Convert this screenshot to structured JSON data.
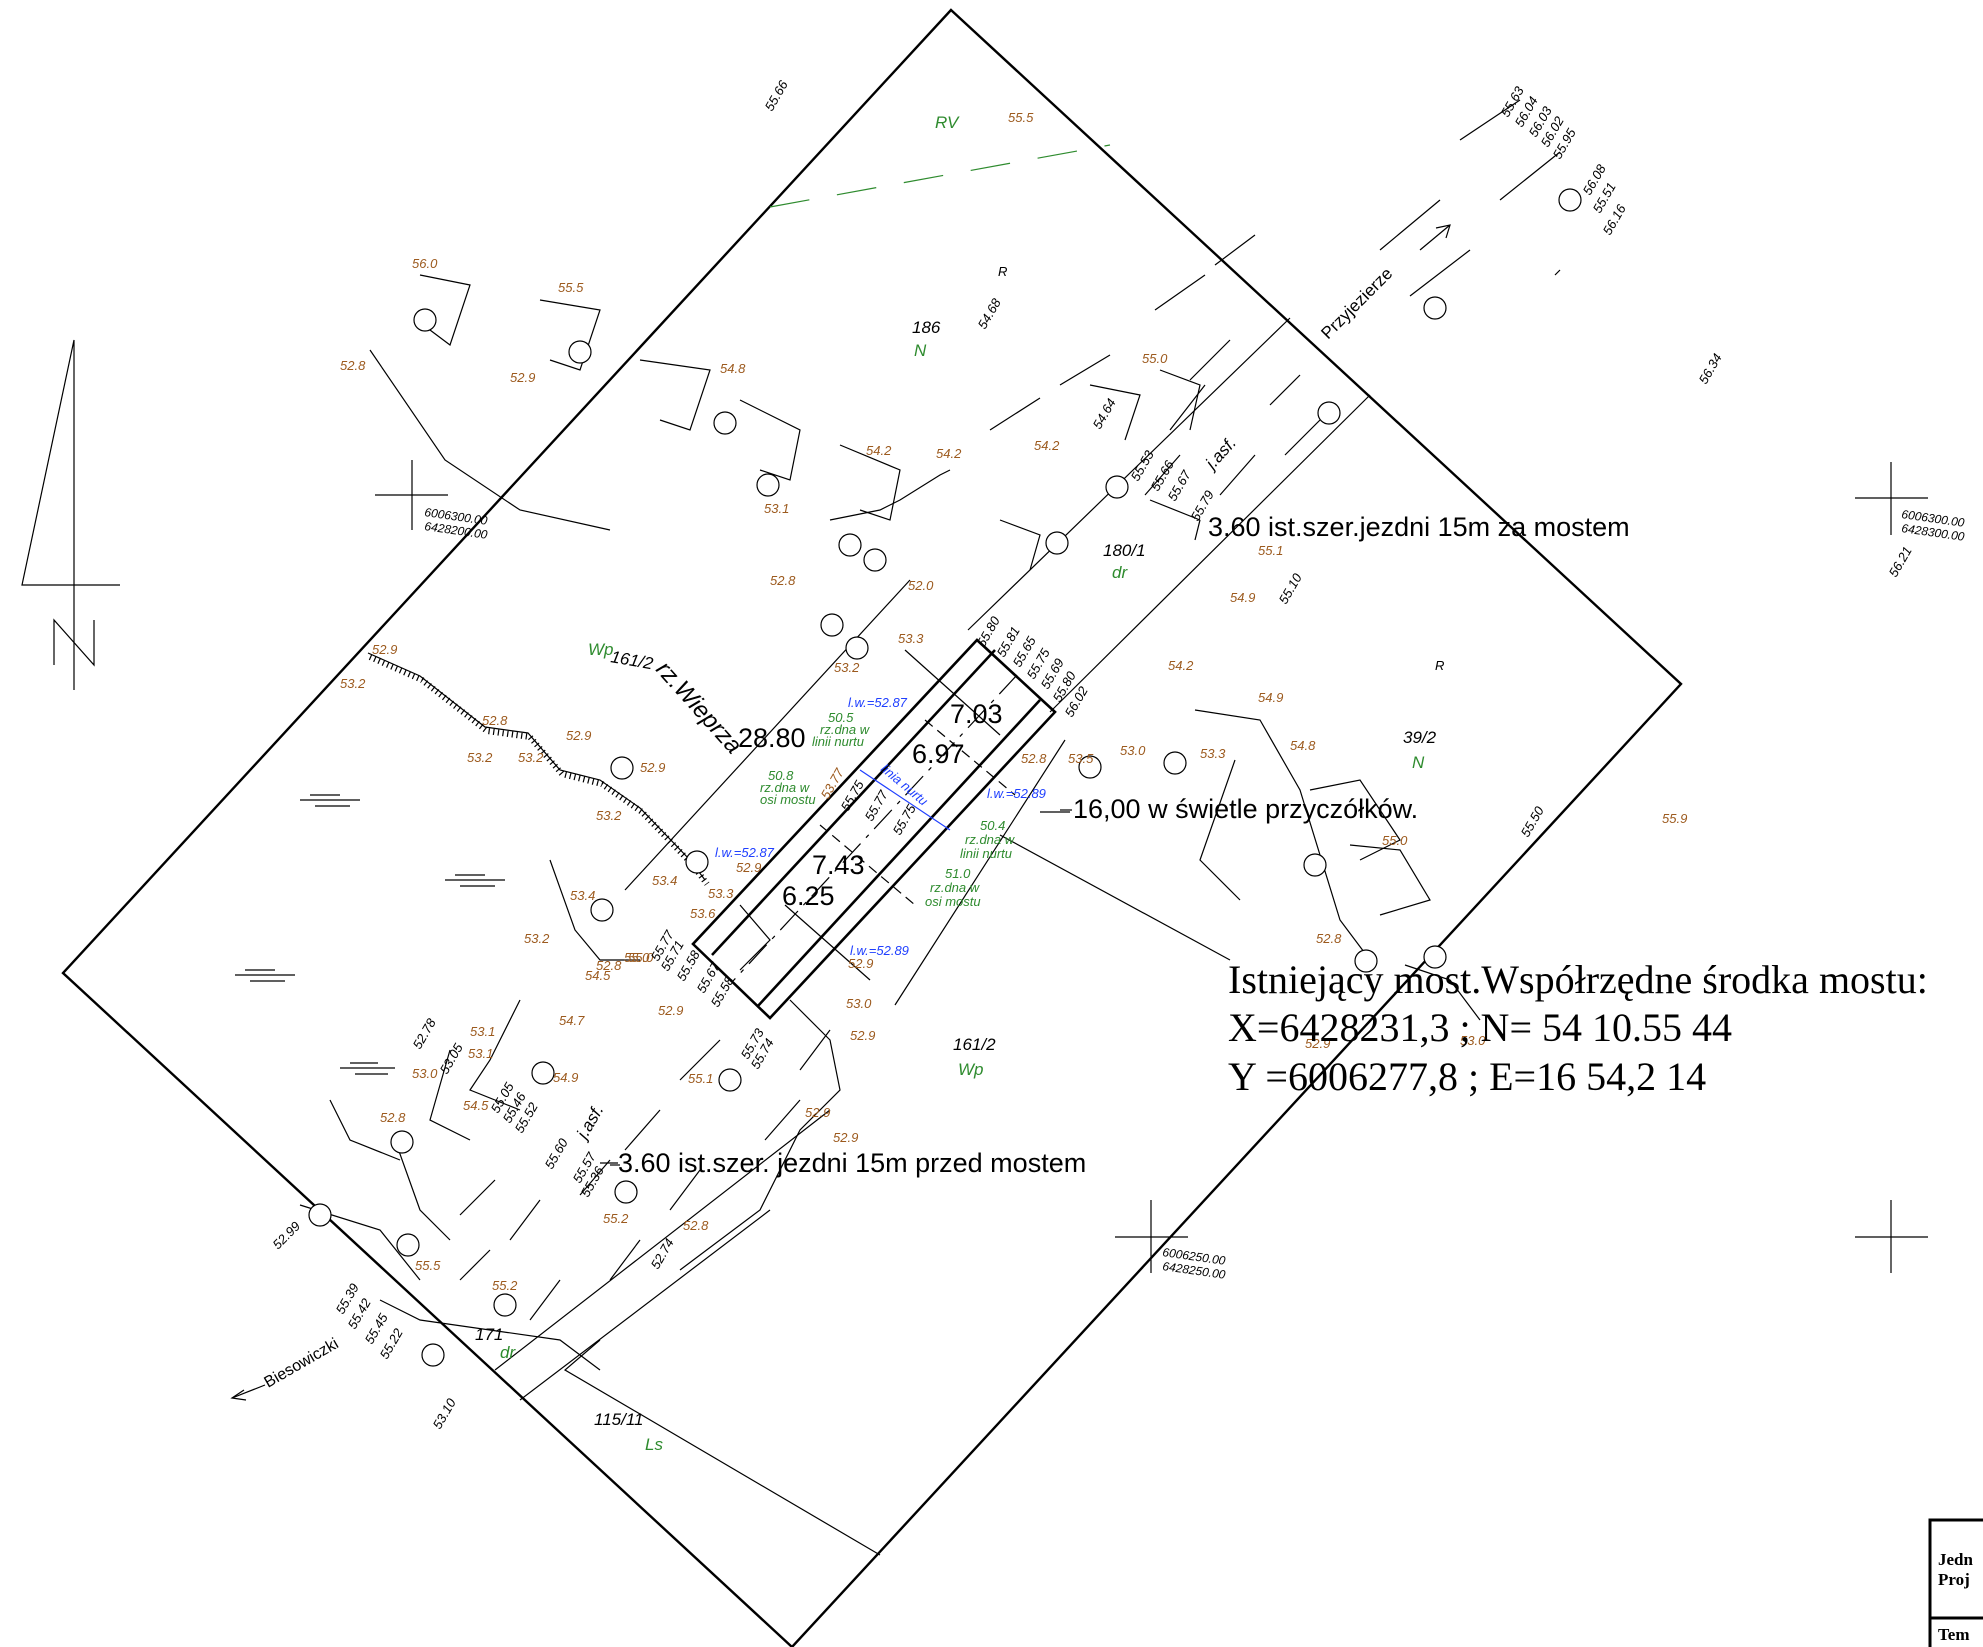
{
  "colors": {
    "ink": "#000000",
    "height": "#9c5a1e",
    "land_use": "#2e8b2e",
    "water": "#1f3fff",
    "dashed_line": "#2e8b2e"
  },
  "heights": [
    {
      "text": "55.66",
      "cls": "b"
    },
    {
      "text": "55.5",
      "cls": "o"
    },
    {
      "text": "55.63",
      "cls": "b"
    },
    {
      "text": "56.04",
      "cls": "b"
    },
    {
      "text": "56.03",
      "cls": "b"
    },
    {
      "text": "56.02",
      "cls": "b"
    },
    {
      "text": "55.95",
      "cls": "b"
    },
    {
      "text": "56.08",
      "cls": "b"
    },
    {
      "text": "55.51",
      "cls": "b"
    },
    {
      "text": "56.16",
      "cls": "b"
    },
    {
      "text": "56.0",
      "cls": "o"
    },
    {
      "text": "55.5",
      "cls": "o"
    },
    {
      "text": "52.8",
      "cls": "o"
    },
    {
      "text": "52.9",
      "cls": "o"
    },
    {
      "text": "54.68",
      "cls": "b"
    },
    {
      "text": "56.34",
      "cls": "b"
    },
    {
      "text": "54.8",
      "cls": "o"
    },
    {
      "text": "55.0",
      "cls": "o"
    },
    {
      "text": "54.64",
      "cls": "b"
    },
    {
      "text": "54.2",
      "cls": "o"
    },
    {
      "text": "54.2",
      "cls": "o"
    },
    {
      "text": "54.2",
      "cls": "o"
    },
    {
      "text": "53.1",
      "cls": "o"
    },
    {
      "text": "55.53",
      "cls": "b"
    },
    {
      "text": "55.66",
      "cls": "b"
    },
    {
      "text": "55.67",
      "cls": "b"
    },
    {
      "text": "55.79",
      "cls": "b"
    },
    {
      "text": "55.1",
      "cls": "o"
    },
    {
      "text": "56.21",
      "cls": "b"
    },
    {
      "text": "52.8",
      "cls": "o"
    },
    {
      "text": "52.0",
      "cls": "o"
    },
    {
      "text": "54.9",
      "cls": "o"
    },
    {
      "text": "55.10",
      "cls": "b"
    },
    {
      "text": "55.80",
      "cls": "b"
    },
    {
      "text": "55.81",
      "cls": "b"
    },
    {
      "text": "55.65",
      "cls": "b"
    },
    {
      "text": "55.75",
      "cls": "b"
    },
    {
      "text": "55.69",
      "cls": "b"
    },
    {
      "text": "53.3",
      "cls": "o"
    },
    {
      "text": "52.9",
      "cls": "o"
    },
    {
      "text": "53.2",
      "cls": "o"
    },
    {
      "text": "53.2",
      "cls": "o"
    },
    {
      "text": "54.2",
      "cls": "o"
    },
    {
      "text": "52.8",
      "cls": "o"
    },
    {
      "text": "55.80",
      "cls": "b"
    },
    {
      "text": "56.02",
      "cls": "b"
    },
    {
      "text": "54.9",
      "cls": "o"
    },
    {
      "text": "52.8",
      "cls": "o"
    },
    {
      "text": "53.2",
      "cls": "o"
    },
    {
      "text": "53.2",
      "cls": "o"
    },
    {
      "text": "52.9",
      "cls": "o"
    },
    {
      "text": "52.9",
      "cls": "o"
    },
    {
      "text": "53.5",
      "cls": "o"
    },
    {
      "text": "53.0",
      "cls": "o"
    },
    {
      "text": "53.3",
      "cls": "o"
    },
    {
      "text": "54.8",
      "cls": "o"
    },
    {
      "text": "52.8",
      "cls": "o"
    },
    {
      "text": "53.2",
      "cls": "o"
    },
    {
      "text": "53.77",
      "cls": "o"
    },
    {
      "text": "55.75",
      "cls": "b"
    },
    {
      "text": "55.77",
      "cls": "b"
    },
    {
      "text": "55.75",
      "cls": "b"
    },
    {
      "text": "55.50",
      "cls": "b"
    },
    {
      "text": "55.9",
      "cls": "o"
    },
    {
      "text": "55.0",
      "cls": "o"
    },
    {
      "text": "52.9",
      "cls": "o"
    },
    {
      "text": "53.4",
      "cls": "o"
    },
    {
      "text": "53.3",
      "cls": "o"
    },
    {
      "text": "53.6",
      "cls": "o"
    },
    {
      "text": "53.4",
      "cls": "o"
    },
    {
      "text": "55.0",
      "cls": "o"
    },
    {
      "text": "52.8",
      "cls": "o"
    },
    {
      "text": "52.9",
      "cls": "o"
    },
    {
      "text": "53.0",
      "cls": "o"
    },
    {
      "text": "53.2",
      "cls": "o"
    },
    {
      "text": "54.5",
      "cls": "o"
    },
    {
      "text": "55.0",
      "cls": "o"
    },
    {
      "text": "55.77",
      "cls": "b"
    },
    {
      "text": "55.71",
      "cls": "b"
    },
    {
      "text": "55.58",
      "cls": "b"
    },
    {
      "text": "55.67",
      "cls": "b"
    },
    {
      "text": "55.58",
      "cls": "b"
    },
    {
      "text": "52.9",
      "cls": "o"
    },
    {
      "text": "52.9",
      "cls": "o"
    },
    {
      "text": "52.9",
      "cls": "o"
    },
    {
      "text": "52.78",
      "cls": "b"
    },
    {
      "text": "53.1",
      "cls": "o"
    },
    {
      "text": "54.7",
      "cls": "o"
    },
    {
      "text": "53.05",
      "cls": "b"
    },
    {
      "text": "53.1",
      "cls": "o"
    },
    {
      "text": "53.0",
      "cls": "o"
    },
    {
      "text": "54.9",
      "cls": "o"
    },
    {
      "text": "55.73",
      "cls": "b"
    },
    {
      "text": "55.74",
      "cls": "b"
    },
    {
      "text": "55.1",
      "cls": "o"
    },
    {
      "text": "54.5",
      "cls": "o"
    },
    {
      "text": "55.05",
      "cls": "b"
    },
    {
      "text": "55.46",
      "cls": "b"
    },
    {
      "text": "55.52",
      "cls": "b"
    },
    {
      "text": "52.8",
      "cls": "o"
    },
    {
      "text": "52.9",
      "cls": "o"
    },
    {
      "text": "55.60",
      "cls": "b"
    },
    {
      "text": "55.57",
      "cls": "b"
    },
    {
      "text": "55.36",
      "cls": "b"
    },
    {
      "text": "55.2",
      "cls": "o"
    },
    {
      "text": "52.8",
      "cls": "o"
    },
    {
      "text": "52.74",
      "cls": "b"
    },
    {
      "text": "52.99",
      "cls": "b"
    },
    {
      "text": "55.5",
      "cls": "o"
    },
    {
      "text": "55.2",
      "cls": "o"
    },
    {
      "text": "55.39",
      "cls": "b"
    },
    {
      "text": "55.42",
      "cls": "b"
    },
    {
      "text": "55.45",
      "cls": "b"
    },
    {
      "text": "55.22",
      "cls": "b"
    },
    {
      "text": "53.10",
      "cls": "b"
    },
    {
      "text": "53.0",
      "cls": "o"
    },
    {
      "text": "52.9",
      "cls": "o"
    }
  ],
  "parcels": [
    {
      "number": "186",
      "use": "N"
    },
    {
      "number": "180/1",
      "use": "dr"
    },
    {
      "number": "39/2",
      "use": "N"
    },
    {
      "number": "161/2",
      "use": "Wp"
    },
    {
      "number": "171",
      "use": "dr"
    },
    {
      "number": "115/11",
      "use": "Ls"
    },
    {
      "number": "161/2",
      "use": "Wp"
    }
  ],
  "land_labels": {
    "rv": "RV",
    "r1": "R",
    "r2": "R"
  },
  "place_labels": {
    "przyjezierze": "Przyjezierze",
    "biesowiczki": "Biesowiczki",
    "river": "rz.Wieprza",
    "asf1": "j.asf.",
    "asf2": "j.asf."
  },
  "grid_coords": {
    "g1a": "6006300.00",
    "g1b": "6428200.00",
    "g2a": "6006300.00",
    "g2b": "6428300.00",
    "g3a": "6006250.00",
    "g3b": "6428250.00"
  },
  "dimensions": {
    "length": "28.80",
    "w1": "7.03",
    "w2": "6.97",
    "w3": "7.43",
    "w4": "6.25"
  },
  "water_levels": {
    "lw1": "l.w.=52.87",
    "lw2": "l.w.=52.89",
    "lw3": "l.w.=52.87",
    "lw4": "l.w.=52.89",
    "current": "linia nurtu"
  },
  "bed_notes": [
    {
      "l1": "50.5",
      "l2": "rz.dna w",
      "l3": "linii nurtu"
    },
    {
      "l1": "50.8",
      "l2": "rz.dna w",
      "l3": "osi mostu"
    },
    {
      "l1": "50.4",
      "l2": "rz.dna w",
      "l3": "linii nurtu"
    },
    {
      "l1": "51.0",
      "l2": "rz.dna w",
      "l3": "osi mostu"
    }
  ],
  "notes": {
    "after_bridge": "3.60 ist.szer.jezdni 15m za mostem",
    "abutments": "16,00 w świetle przyczółków.",
    "before_bridge": "3.60 ist.szer. jezdni 15m przed mostem"
  },
  "bridge_info": {
    "line1": "Istniejący most.Współrzędne środka mostu:",
    "line2": "X=6428231,3 ; N= 54 10.55 44",
    "line3": "Y =6006277,8 ; E=16 54,2 14"
  },
  "title_block": {
    "row1a": "Jedn",
    "row1b": "Proj",
    "row2": "Tem"
  }
}
